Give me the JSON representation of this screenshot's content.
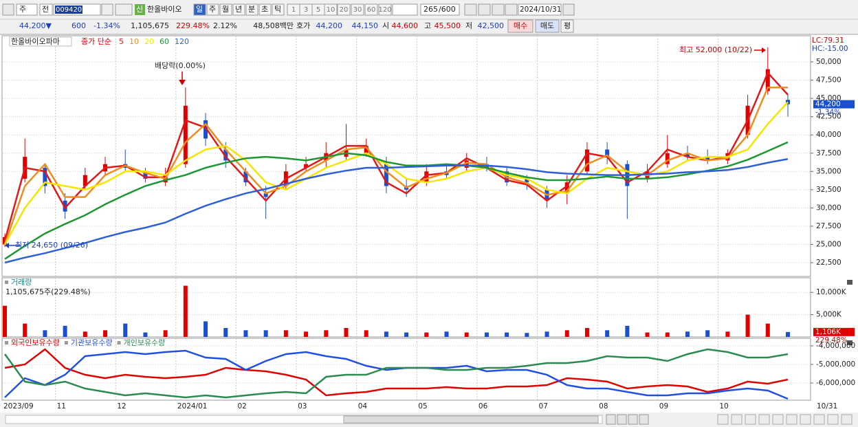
{
  "toolbar": {
    "period_type": "주",
    "price_type": "전",
    "code": "009420",
    "market_badge": "신",
    "name": "한올바이오",
    "intervals": [
      "일",
      "주",
      "월",
      "년",
      "분",
      "초",
      "틱"
    ],
    "minutes": [
      "1",
      "3",
      "5",
      "10",
      "20",
      "30",
      "60",
      "120"
    ],
    "count": "265",
    "count_max": "/600",
    "date": "2024/10/31"
  },
  "quote": {
    "price": "44,200▼",
    "change": "600",
    "change_pct": "-1.34%",
    "volume": "1,105,675",
    "volume_ratio": "229.48%",
    "turnover": "2.12%",
    "amount": "48,508백만",
    "ask_label": "호가",
    "ask": "44,200",
    "bid": "44,150",
    "open_label": "시",
    "open": "44,600",
    "high_label": "고",
    "high": "45,500",
    "low_label": "저",
    "low": "42,500",
    "buy": "매수",
    "sell": "매도",
    "avg": "평"
  },
  "chart_data": [
    {
      "type": "candlestick",
      "title": "한올바이오파마",
      "legend_title": "종가 단순",
      "corner_labels": [
        "LC:79.31",
        "HC:-15.00"
      ],
      "last_price_label": "44,200",
      "last_change_label": "-1.34%",
      "annotations": [
        "배당락(0.00%)",
        "최고 52,000 (10/22)",
        "최저 24,650 (09/26)"
      ],
      "up_color": "#e00000",
      "down_color": "#1a50d0",
      "grid": true,
      "open": [
        25000,
        34000,
        35500,
        31000,
        33000,
        35000,
        36000,
        35000,
        33500,
        36000,
        42000,
        38000,
        35000,
        32000,
        33000,
        35500,
        36500,
        37000,
        37500,
        36000,
        33000,
        33500,
        35000,
        35500,
        36000,
        35000,
        34000,
        32500,
        32000,
        35000,
        38000,
        36000,
        34000,
        36000,
        37500,
        37000,
        36500,
        40000,
        46000,
        44800
      ],
      "high": [
        26500,
        39500,
        36000,
        32000,
        35500,
        37000,
        38000,
        35500,
        35500,
        46500,
        43000,
        39000,
        35500,
        33000,
        36000,
        37000,
        39000,
        41500,
        39500,
        37000,
        34000,
        36000,
        36000,
        37500,
        37000,
        35500,
        34500,
        33000,
        34500,
        39000,
        39000,
        36500,
        36000,
        40000,
        38500,
        38000,
        38000,
        45500,
        52000,
        45500
      ],
      "low": [
        24650,
        33500,
        32000,
        28500,
        32500,
        34500,
        35000,
        33500,
        33000,
        35500,
        38500,
        35500,
        33000,
        28500,
        32500,
        35000,
        35500,
        36500,
        37000,
        32000,
        31500,
        33000,
        34000,
        35000,
        35000,
        33000,
        32500,
        30000,
        30500,
        34500,
        36000,
        28500,
        33500,
        35500,
        36500,
        36000,
        36000,
        39500,
        45500,
        42500
      ],
      "close": [
        26000,
        37000,
        33000,
        29500,
        34500,
        36000,
        35500,
        34000,
        34500,
        44000,
        39500,
        36500,
        33500,
        31500,
        35000,
        36000,
        37500,
        38000,
        38500,
        33000,
        32500,
        35000,
        34500,
        36500,
        35500,
        33500,
        33500,
        31000,
        33500,
        38000,
        37000,
        33000,
        35000,
        37500,
        37000,
        36500,
        37500,
        44000,
        49000,
        44200
      ],
      "series": [
        {
          "name": "5",
          "color": "#e01818",
          "values": [
            25500,
            35500,
            35000,
            30000,
            33000,
            35500,
            35800,
            34200,
            34200,
            42000,
            41000,
            37000,
            34000,
            31000,
            34000,
            35500,
            37000,
            38500,
            38500,
            33500,
            32000,
            34500,
            34800,
            36800,
            35500,
            33800,
            33200,
            31000,
            33000,
            37500,
            37000,
            33500,
            35000,
            38000,
            37000,
            36500,
            37000,
            42000,
            48500,
            45500
          ]
        },
        {
          "name": "10",
          "color": "#f08c1e",
          "values": [
            25000,
            33000,
            36000,
            31500,
            31500,
            34500,
            35800,
            34800,
            34000,
            39000,
            41500,
            38000,
            35000,
            32000,
            33000,
            35000,
            36500,
            38000,
            38300,
            35000,
            32800,
            34000,
            34800,
            36200,
            36000,
            34200,
            33400,
            31800,
            32300,
            36000,
            37200,
            35000,
            34500,
            36500,
            37500,
            36500,
            36800,
            40000,
            46500,
            46500
          ]
        },
        {
          "name": "20",
          "color": "#f5e600",
          "values": [
            25000,
            30000,
            33500,
            33000,
            32500,
            33500,
            35000,
            35000,
            34500,
            36500,
            38000,
            38500,
            36500,
            33500,
            32500,
            34000,
            35500,
            36500,
            37500,
            36000,
            34000,
            33500,
            34000,
            35000,
            35500,
            34500,
            34000,
            32500,
            32000,
            34000,
            35500,
            35000,
            34500,
            35000,
            36500,
            37000,
            37000,
            38000,
            41500,
            44500
          ]
        },
        {
          "name": "60",
          "color": "#1e9632",
          "values": [
            23000,
            24800,
            26500,
            27800,
            29000,
            30500,
            31800,
            33000,
            33800,
            34500,
            35500,
            36200,
            36800,
            37000,
            36800,
            36500,
            37000,
            37500,
            37200,
            36300,
            35800,
            35800,
            36000,
            35800,
            35500,
            34800,
            34200,
            33800,
            33800,
            34000,
            34300,
            34000,
            34000,
            34200,
            34600,
            35100,
            35700,
            36600,
            37800,
            39000
          ]
        },
        {
          "name": "120",
          "color": "#2d5fd7",
          "values": [
            22500,
            23200,
            23800,
            24500,
            25200,
            26000,
            26700,
            27300,
            28000,
            29200,
            30300,
            31200,
            32000,
            32600,
            33300,
            34000,
            34600,
            35100,
            35500,
            35500,
            35600,
            35700,
            35800,
            35800,
            35800,
            35600,
            35300,
            34900,
            34700,
            34600,
            34500,
            34500,
            34600,
            34700,
            34900,
            35000,
            35200,
            35600,
            36200,
            36700
          ]
        }
      ],
      "ylim": [
        20620,
        53580
      ],
      "yticks": [
        {
          "value": 22500,
          "label": "22,500"
        },
        {
          "value": 25000,
          "label": "25,000"
        },
        {
          "value": 27500,
          "label": "27,500"
        },
        {
          "value": 30000,
          "label": "30,000"
        },
        {
          "value": 32500,
          "label": "32,500"
        },
        {
          "value": 35000,
          "label": "35,000"
        },
        {
          "value": 37500,
          "label": "37,500"
        },
        {
          "value": 40000,
          "label": "40,000"
        },
        {
          "value": 42500,
          "label": "42,500"
        },
        {
          "value": 45000,
          "label": "45,000"
        },
        {
          "value": 47500,
          "label": "47,500"
        },
        {
          "value": 50000,
          "label": "50,000"
        }
      ]
    },
    {
      "type": "bar",
      "title": "거래량",
      "subtitle": "1,105,675주(229.48%)",
      "last_ratio_label": "229.48%",
      "values": [
        7000,
        3000,
        1500,
        2500,
        1200,
        1500,
        3000,
        1000,
        1500,
        11500,
        3500,
        2000,
        1500,
        1500,
        1500,
        1200,
        1500,
        2000,
        1500,
        1200,
        1000,
        1000,
        1200,
        1000,
        1000,
        1000,
        900,
        1200,
        1500,
        2000,
        1500,
        2500,
        1000,
        1000,
        1200,
        1500,
        1200,
        5000,
        3000,
        1106
      ],
      "value_labels": [
        null,
        null,
        null,
        null,
        null,
        null,
        null,
        null,
        null,
        null,
        null,
        null,
        null,
        null,
        null,
        null,
        null,
        null,
        null,
        null,
        null,
        null,
        null,
        null,
        null,
        null,
        null,
        null,
        null,
        null,
        null,
        null,
        null,
        null,
        null,
        null,
        null,
        null,
        null,
        "1,106K"
      ],
      "ylim": [
        0,
        13280
      ],
      "yticks": [
        {
          "value": 5000,
          "label": "5,000K"
        },
        {
          "value": 10000,
          "label": "10,000K"
        }
      ]
    },
    {
      "type": "line",
      "end_label": "10/31",
      "categories": [
        "2023/09",
        null,
        null,
        "11",
        null,
        null,
        "12",
        null,
        null,
        "2024/01",
        null,
        null,
        "02",
        null,
        null,
        "03",
        null,
        null,
        "04",
        null,
        null,
        "05",
        null,
        null,
        "06",
        null,
        null,
        "07",
        null,
        null,
        "08",
        null,
        null,
        "09",
        null,
        null,
        "10",
        null,
        null,
        null
      ],
      "series": [
        {
          "name": "외국인보유수량",
          "color": "#e00000",
          "values": [
            -5185000,
            -5000000,
            -4185000,
            -5185000,
            -5556000,
            -5741000,
            -5556000,
            -5667000,
            -5741000,
            -5667000,
            -5556000,
            -5185000,
            -5296000,
            -5370000,
            -5556000,
            -5815000,
            -6667000,
            -6556000,
            -6481000,
            -6296000,
            -6296000,
            -6296000,
            -6222000,
            -6296000,
            -6296000,
            -6185000,
            -6185000,
            -6111000,
            -5741000,
            -5815000,
            -5926000,
            -6296000,
            -6185000,
            -6111000,
            -6185000,
            -6481000,
            -6296000,
            -5926000,
            -6037000,
            -5815000
          ]
        },
        {
          "name": "기관보유수량",
          "color": "#2050e0",
          "values": [
            -6778000,
            -5741000,
            -6111000,
            -5556000,
            -4556000,
            -4444000,
            -4333000,
            -4444000,
            -4333000,
            -4259000,
            -4630000,
            -4704000,
            -5296000,
            -4815000,
            -4444000,
            -4333000,
            -4556000,
            -4704000,
            -5074000,
            -5296000,
            -5185000,
            -5185000,
            -5185000,
            -5074000,
            -5370000,
            -5296000,
            -5296000,
            -5556000,
            -6111000,
            -6296000,
            -6296000,
            -6481000,
            -6667000,
            -6667000,
            -6556000,
            -6556000,
            -6407000,
            -6296000,
            -6407000,
            -6852000
          ]
        },
        {
          "name": "개인보유수량",
          "color": "#2a8a50",
          "values": [
            -4444000,
            -5926000,
            -6111000,
            -5926000,
            -6296000,
            -6481000,
            -6667000,
            -6556000,
            -6667000,
            -6778000,
            -6667000,
            -6778000,
            -6667000,
            -6556000,
            -6481000,
            -6556000,
            -5667000,
            -5556000,
            -5556000,
            -5185000,
            -5185000,
            -5185000,
            -5296000,
            -5296000,
            -5185000,
            -5185000,
            -5074000,
            -4926000,
            -4926000,
            -4815000,
            -4556000,
            -4630000,
            -4630000,
            -4815000,
            -4444000,
            -4185000,
            -4333000,
            -4630000,
            -4630000,
            -4444000
          ]
        }
      ],
      "ylim": [
        -6926000,
        -3593000
      ],
      "yticks": [
        {
          "value": -6000000,
          "label": "-6,000,000"
        },
        {
          "value": -5000000,
          "label": "-5,000,000"
        },
        {
          "value": -4000000,
          "label": "-4,000,000"
        }
      ]
    }
  ]
}
